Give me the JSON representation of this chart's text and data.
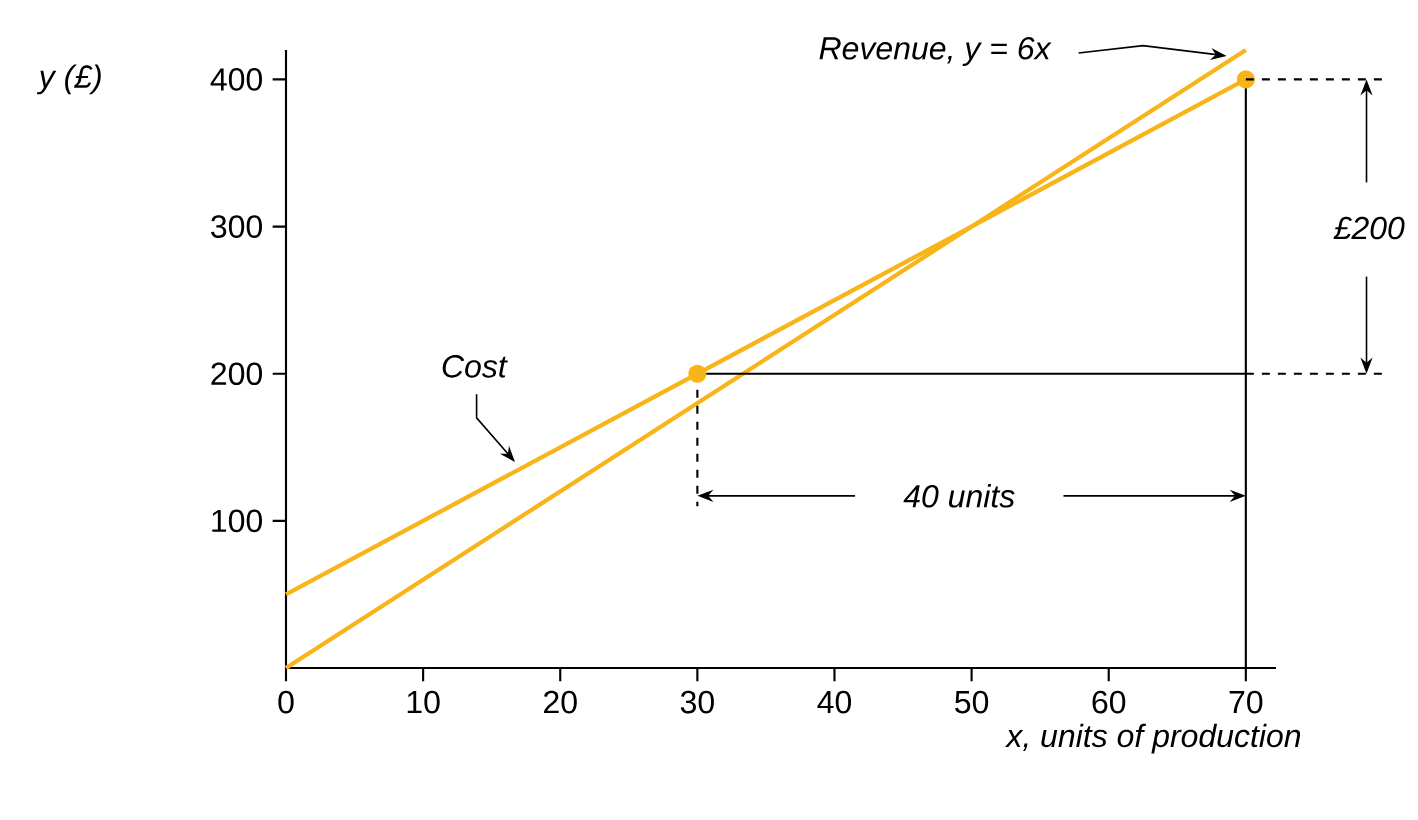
{
  "chart_data": {
    "type": "line",
    "xlabel": "x, units of production",
    "ylabel": "y (£)",
    "xlim": [
      0,
      72.2
    ],
    "ylim": [
      0,
      420
    ],
    "xticks": [
      0,
      10,
      20,
      30,
      40,
      50,
      60,
      70
    ],
    "yticks": [
      100,
      200,
      300,
      400
    ],
    "series": [
      {
        "name": "Cost",
        "color": "#f7b519",
        "x": [
          0,
          70
        ],
        "values": [
          50,
          400
        ]
      },
      {
        "name": "Revenue, y = 6x",
        "color": "#f7b519",
        "x": [
          0,
          70
        ],
        "values": [
          0,
          420
        ]
      },
      {
        "color": "#000000",
        "x": [
          30,
          70
        ],
        "values": [
          200,
          200
        ]
      },
      {
        "color": "#000000",
        "x": [
          70,
          70
        ],
        "values": [
          400,
          0
        ]
      },
      {
        "color": "#000000",
        "line_style": "dashed",
        "x": [
          30,
          30
        ],
        "values": [
          200,
          110
        ]
      },
      {
        "type": "scatter",
        "marker": "circle",
        "color": "#f7b519",
        "x": [
          30,
          70
        ],
        "values": [
          200,
          400
        ]
      }
    ],
    "annotations": [
      "£200",
      "40 units"
    ]
  }
}
